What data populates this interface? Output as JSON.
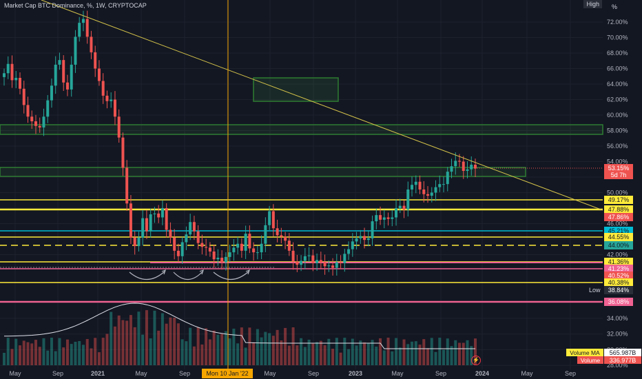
{
  "header": {
    "title": "Market Cap BTC Dominance, %, 1W, CRYPTOCAP",
    "high_label": "High",
    "unit_label": "%"
  },
  "colors": {
    "bg": "#131722",
    "up": "#26a69a",
    "down": "#ef5350",
    "yellow": "#ffeb3b",
    "cyan": "#00bcd4",
    "pink": "#f06292",
    "trend": "#d4c24a",
    "zone": "#2e7d32"
  },
  "icons": {
    "bolt": "lightning-icon"
  },
  "chart_data": {
    "type": "candlestick",
    "title": "Market Cap BTC Dominance, %, 1W, CRYPTOCAP",
    "ylim": [
      28.0,
      74.0
    ],
    "y_ticks": [
      "72.00%",
      "70.00%",
      "68.00%",
      "66.00%",
      "64.00%",
      "62.00%",
      "60.00%",
      "58.00%",
      "56.00%",
      "54.00%",
      "52.00%",
      "50.00%",
      "48.00%",
      "46.00%",
      "44.00%",
      "42.00%",
      "34.00%",
      "32.00%",
      "30.00%",
      "28.00%"
    ],
    "x_ticks": [
      "May",
      "Sep",
      "2021",
      "May",
      "Sep",
      "Mon 10 Jan '22",
      "May",
      "Sep",
      "2023",
      "May",
      "Sep",
      "2024",
      "May",
      "Sep"
    ],
    "closes": [
      65.4,
      66.6,
      64.5,
      64.8,
      63.4,
      61.3,
      59.8,
      59.2,
      58.6,
      58.4,
      59.8,
      61.9,
      63.8,
      66.5,
      67.1,
      64.2,
      63.3,
      66.5,
      70.1,
      71.9,
      72.4,
      70.1,
      68.1,
      66.0,
      64.4,
      62.5,
      61.8,
      62.0,
      59.8,
      57.1,
      53.2,
      48.6,
      44.2,
      43.1,
      44.2,
      46.7,
      45.0,
      47.2,
      47.3,
      46.8,
      48.0,
      45.2,
      44.2,
      42.5,
      41.8,
      43.6,
      44.6,
      46.2,
      45.0,
      43.5,
      43.0,
      42.9,
      42.4,
      41.4,
      41.6,
      41.0,
      41.7,
      42.3,
      42.9,
      43.4,
      42.5,
      44.7,
      42.8,
      42.3,
      42.3,
      43.4,
      45.8,
      47.6,
      45.4,
      44.5,
      44.3,
      43.8,
      42.5,
      41.1,
      40.7,
      41.2,
      41.8,
      41.9,
      40.9,
      41.3,
      41.0,
      40.5,
      40.6,
      40.3,
      41.0,
      40.9,
      42.1,
      42.7,
      43.7,
      44.1,
      44.4,
      43.9,
      44.1,
      46.3,
      47.1,
      46.5,
      46.8,
      46.6,
      46.8,
      48.0,
      48.3,
      47.8,
      50.4,
      51.0,
      51.4,
      50.4,
      49.8,
      49.6,
      50.0,
      50.7,
      51.1,
      51.1,
      52.7,
      53.4,
      54.1,
      54.0,
      52.8,
      53.0,
      53.6,
      53.1
    ],
    "horizontal_levels": [
      {
        "value": 49.17,
        "label": "49.17%",
        "color": "#ffeb3b"
      },
      {
        "value": 47.88,
        "label": "47.88%",
        "color": "#ffeb3b"
      },
      {
        "value": 47.86,
        "label": "47.86%",
        "color": "#ef5350"
      },
      {
        "value": 45.21,
        "label": "45.21%",
        "color": "#00bcd4"
      },
      {
        "value": 44.55,
        "label": "44.55%",
        "color": "#ffeb3b"
      },
      {
        "value": 44.0,
        "label": "44.00%",
        "color": "#26a69a"
      },
      {
        "value": 41.36,
        "label": "41.36%",
        "color": "#ffeb3b"
      },
      {
        "value": 41.23,
        "label": "41.23%",
        "color": "#f06292"
      },
      {
        "value": 40.52,
        "label": "40.52%",
        "color": "#ef5350"
      },
      {
        "value": 40.38,
        "label": "40.38%",
        "color": "#ffeb3b"
      },
      {
        "value": 38.84,
        "label": "38.84%",
        "color": "#2a2e39"
      },
      {
        "value": 36.08,
        "label": "36.08%",
        "color": "#f06292"
      }
    ],
    "current": {
      "value": 53.15,
      "label": "53.15%",
      "countdown": "5d 7h"
    },
    "low_label": "Low",
    "volume": {
      "ma_label": "Volume MA",
      "ma_value": "565.987B",
      "label": "Volume",
      "value": "336.977B"
    }
  }
}
